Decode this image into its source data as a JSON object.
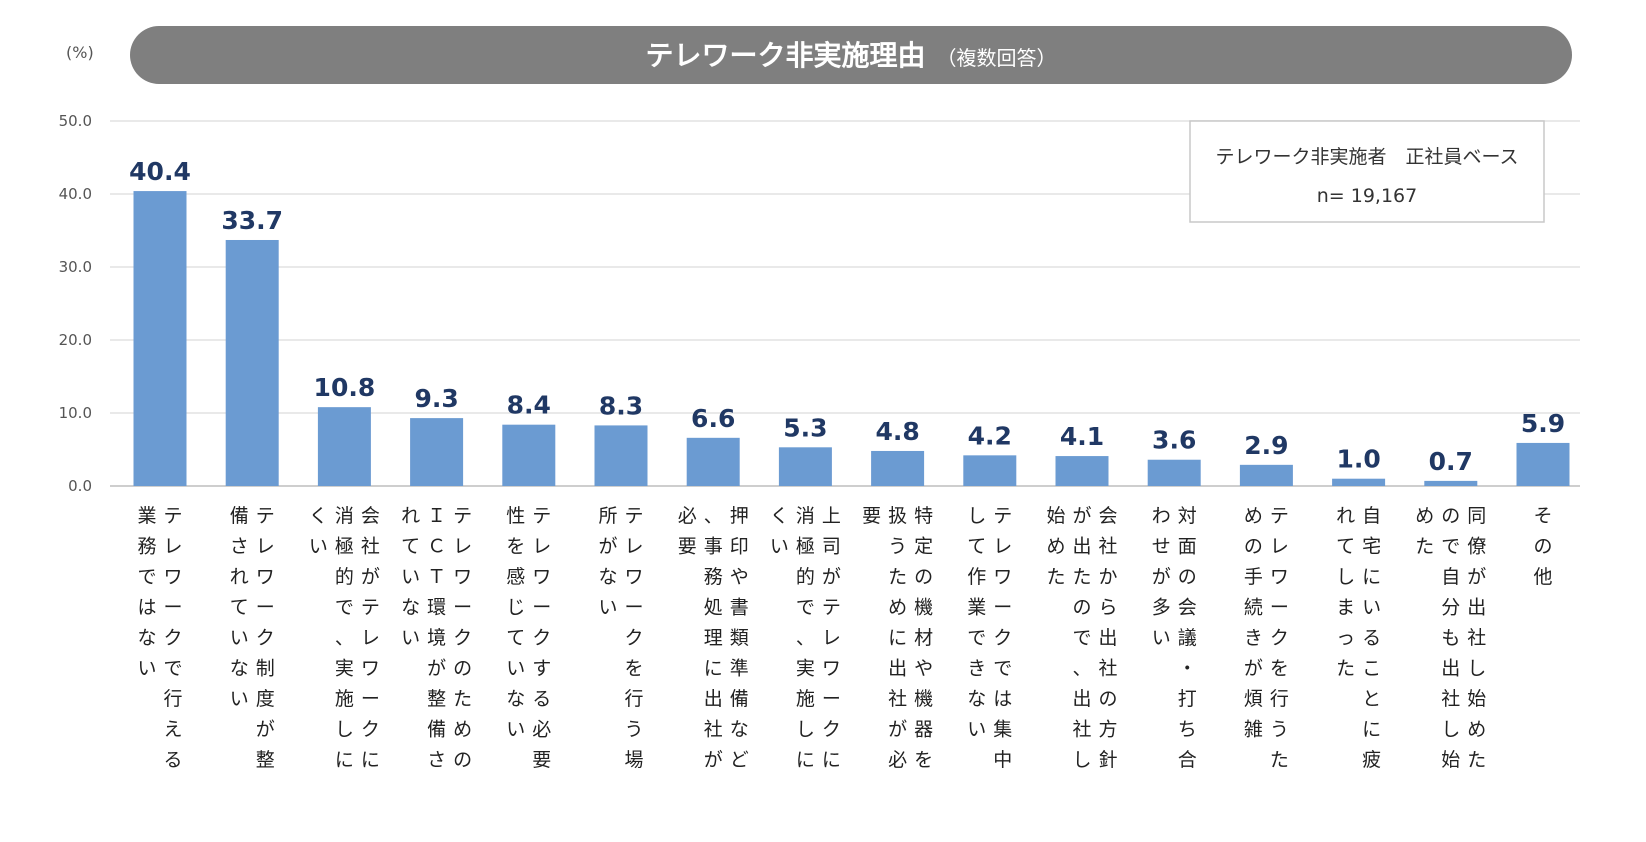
{
  "chart_data": {
    "type": "bar",
    "title": "テレワーク非実施理由",
    "subtitle": "（複数回答）",
    "unit": "(%)",
    "ylim": [
      0,
      50
    ],
    "yticks": [
      "0.0",
      "10.0",
      "20.0",
      "30.0",
      "40.0",
      "50.0"
    ],
    "grid": true,
    "legend_box": {
      "line1": "テレワーク非実施者　正社員ベース",
      "line2": "n= 19,167",
      "placement": "top-right"
    },
    "categories": [
      "テレワークで行える業務ではない",
      "テレワーク制度が整備されていない",
      "会社がテレワークに消極的で、実施しにくい",
      "テレワークのためのＩＣＴ環境が整備されていない",
      "テレワークする必要性を感じていない",
      "テレワークを行う場所がない",
      "押印や書類準備など、事務処理に出社が必要",
      "上司がテレワークに消極的で、実施しにくい",
      "特定の機材や機器を扱うために出社が必要",
      "テレワークでは集中して作業できない",
      "会社から出社の方針が出たので、出社し始めた",
      "対面の会議・打ち合わせが多い",
      "テレワークを行うための手続きが煩雑",
      "自宅にいることに疲れてしまった",
      "同僚が出社し始めたので自分も出社し始めた",
      "その他"
    ],
    "values": [
      40.4,
      33.7,
      10.8,
      9.3,
      8.4,
      8.3,
      6.6,
      5.3,
      4.8,
      4.2,
      4.1,
      3.6,
      2.9,
      1.0,
      0.7,
      5.9
    ],
    "value_labels": [
      "40.4",
      "33.7",
      "10.8",
      "9.3",
      "8.4",
      "8.3",
      "6.6",
      "5.3",
      "4.8",
      "4.2",
      "4.1",
      "3.6",
      "2.9",
      "1.0",
      "0.7",
      "5.9"
    ],
    "colors": {
      "bar": "#6b9bd2",
      "value_label": "#203864",
      "title_bg": "#7f7f7f"
    }
  }
}
